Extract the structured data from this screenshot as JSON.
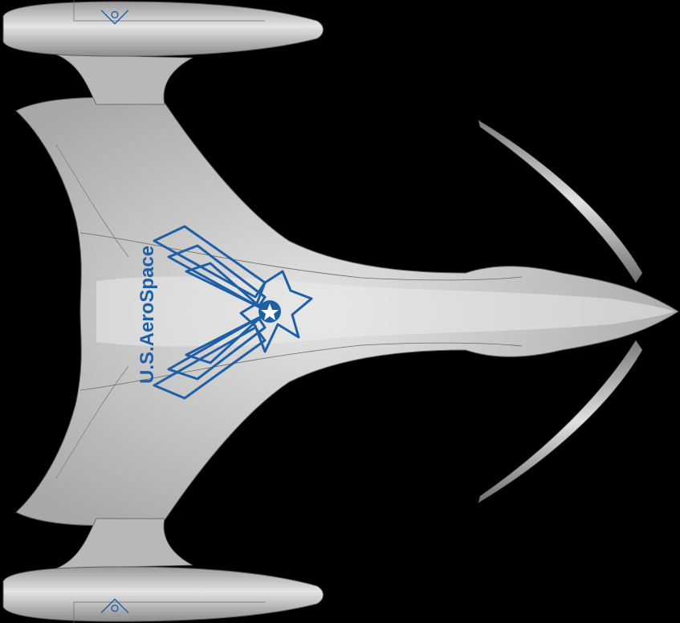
{
  "scene": {
    "subject": "spacecraft-top-view",
    "background_color": "#000000",
    "hull_color": "#c9c9c9",
    "insignia_color": "#1f5fa6",
    "insignia_text": "U.S.AeroSpace"
  }
}
